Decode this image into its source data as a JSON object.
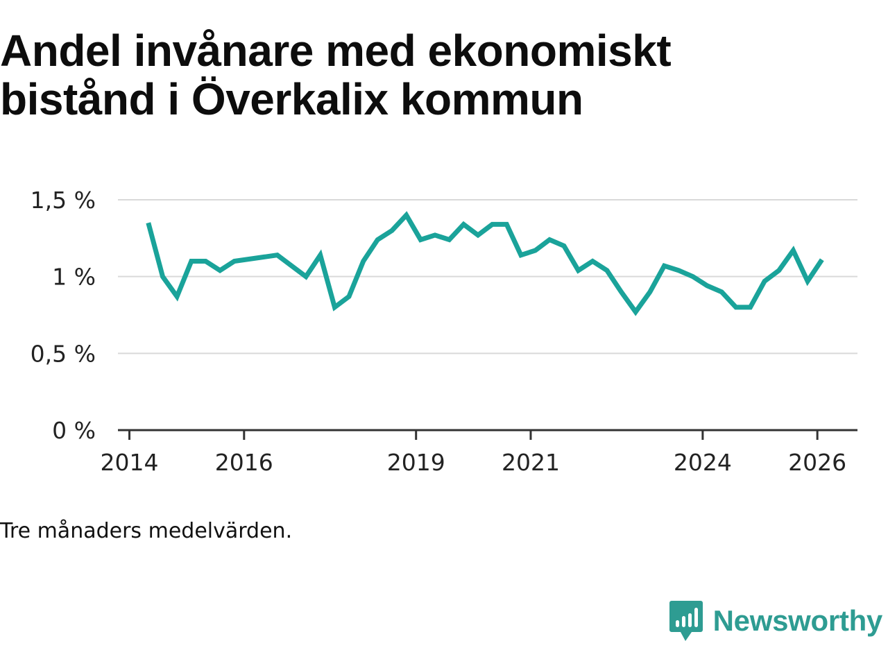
{
  "title_lines": [
    "Andel invånare med ekonomiskt",
    "bistånd i Överkalix kommun"
  ],
  "note": "Tre månaders medelvärden.",
  "brand": {
    "name": "Newsworthy",
    "icon": "newsworthy-logo-icon"
  },
  "colors": {
    "line": "#1aa39a",
    "grid": "#d9d9d9",
    "axis": "#333333",
    "brand": "#2e9c92"
  },
  "chart_data": {
    "type": "line",
    "title": "Andel invånare med ekonomiskt bistånd i Överkalix kommun",
    "xlabel": "",
    "ylabel": "",
    "xlim": [
      2013.8,
      2026.7
    ],
    "ylim": [
      0,
      1.5
    ],
    "yticks": [
      {
        "value": 0,
        "label": "0 %"
      },
      {
        "value": 0.5,
        "label": "0,5 %"
      },
      {
        "value": 1,
        "label": "1 %"
      },
      {
        "value": 1.5,
        "label": "1,5 %"
      }
    ],
    "xticks": [
      {
        "value": 2014,
        "label": "2014"
      },
      {
        "value": 2016,
        "label": "2016"
      },
      {
        "value": 2019,
        "label": "2019"
      },
      {
        "value": 2021,
        "label": "2021"
      },
      {
        "value": 2024,
        "label": "2024"
      },
      {
        "value": 2026,
        "label": "2026"
      }
    ],
    "series": [
      {
        "name": "Andel invånare med ekonomiskt bistånd",
        "x": [
          2014.33,
          2014.58,
          2014.83,
          2015.08,
          2015.33,
          2015.58,
          2015.83,
          2016.58,
          2017.08,
          2017.33,
          2017.58,
          2017.83,
          2018.08,
          2018.33,
          2018.58,
          2018.83,
          2019.08,
          2019.33,
          2019.58,
          2019.83,
          2020.08,
          2020.33,
          2020.58,
          2020.83,
          2021.08,
          2021.33,
          2021.58,
          2021.83,
          2022.08,
          2022.33,
          2022.58,
          2022.83,
          2023.08,
          2023.33,
          2023.58,
          2023.83,
          2024.08,
          2024.33,
          2024.58,
          2024.83,
          2025.08,
          2025.33,
          2025.58,
          2025.83,
          2026.08
        ],
        "values": [
          1.35,
          1.0,
          0.87,
          1.1,
          1.1,
          1.04,
          1.1,
          1.14,
          1.0,
          1.14,
          0.8,
          0.87,
          1.1,
          1.24,
          1.3,
          1.4,
          1.24,
          1.27,
          1.24,
          1.34,
          1.27,
          1.34,
          1.34,
          1.14,
          1.17,
          1.24,
          1.2,
          1.04,
          1.1,
          1.04,
          0.9,
          0.77,
          0.9,
          1.07,
          1.04,
          1.0,
          0.94,
          0.9,
          0.8,
          0.8,
          0.97,
          1.04,
          1.17,
          0.97,
          1.11
        ]
      }
    ]
  }
}
